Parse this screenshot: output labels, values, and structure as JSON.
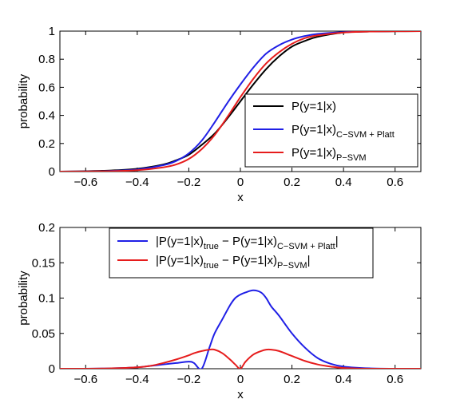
{
  "chart_data": [
    {
      "type": "line",
      "xlabel": "x",
      "ylabel": "probability",
      "xlim": [
        -0.7,
        0.7
      ],
      "ylim": [
        0,
        1
      ],
      "xticks": [
        -0.6,
        -0.4,
        -0.2,
        0,
        0.2,
        0.4,
        0.6
      ],
      "xtick_labels": [
        "−0.6",
        "−0.4",
        "−0.2",
        "0",
        "0.2",
        "0.4",
        "0.6"
      ],
      "yticks": [
        0,
        0.2,
        0.4,
        0.6,
        0.8,
        1
      ],
      "ytick_labels": [
        "0",
        "0.2",
        "0.4",
        "0.6",
        "0.8",
        "1"
      ],
      "grid": false,
      "legend_position": "bottom-right",
      "x": [
        -0.7,
        -0.6,
        -0.5,
        -0.4,
        -0.3,
        -0.25,
        -0.2,
        -0.15,
        -0.1,
        -0.05,
        0,
        0.05,
        0.1,
        0.15,
        0.2,
        0.25,
        0.3,
        0.4,
        0.5,
        0.6,
        0.7
      ],
      "series": [
        {
          "name": "P(y=1|x)",
          "legend": {
            "main": "P(y=1|x)",
            "sub": "",
            "tail": ""
          },
          "color": "#000000",
          "values": [
            0.0,
            0.003,
            0.008,
            0.02,
            0.05,
            0.08,
            0.12,
            0.19,
            0.27,
            0.38,
            0.5,
            0.62,
            0.73,
            0.82,
            0.89,
            0.93,
            0.96,
            0.99,
            0.997,
            0.999,
            1.0
          ]
        },
        {
          "name": "P(y=1|x)C−SVM + Platt",
          "legend": {
            "main": "P(y=1|x)",
            "sub": "C−SVM + Platt",
            "tail": ""
          },
          "color": "#1f1fe6",
          "values": [
            0.0,
            0.001,
            0.005,
            0.015,
            0.045,
            0.075,
            0.13,
            0.22,
            0.35,
            0.49,
            0.62,
            0.74,
            0.84,
            0.9,
            0.94,
            0.965,
            0.98,
            0.993,
            0.998,
            1.0,
            1.0
          ]
        },
        {
          "name": "P(y=1|x)P−SVM",
          "legend": {
            "main": "P(y=1|x)",
            "sub": "P−SVM",
            "tail": ""
          },
          "color": "#e61c1c",
          "values": [
            0.0,
            0.001,
            0.003,
            0.01,
            0.03,
            0.05,
            0.09,
            0.16,
            0.26,
            0.39,
            0.53,
            0.66,
            0.77,
            0.85,
            0.91,
            0.95,
            0.97,
            0.99,
            0.997,
            0.999,
            1.0
          ]
        }
      ]
    },
    {
      "type": "line",
      "xlabel": "x",
      "ylabel": "probability",
      "xlim": [
        -0.7,
        0.7
      ],
      "ylim": [
        0,
        0.2
      ],
      "xticks": [
        -0.6,
        -0.4,
        -0.2,
        0,
        0.2,
        0.4,
        0.6
      ],
      "xtick_labels": [
        "−0.6",
        "−0.4",
        "−0.2",
        "0",
        "0.2",
        "0.4",
        "0.6"
      ],
      "yticks": [
        0,
        0.05,
        0.1,
        0.15,
        0.2
      ],
      "ytick_labels": [
        "0",
        "0.05",
        "0.1",
        "0.15",
        "0.2"
      ],
      "grid": false,
      "legend_position": "top-center",
      "x": [
        -0.7,
        -0.6,
        -0.5,
        -0.4,
        -0.35,
        -0.3,
        -0.25,
        -0.2,
        -0.18,
        -0.15,
        -0.12,
        -0.1,
        -0.07,
        -0.04,
        -0.02,
        0,
        0.02,
        0.05,
        0.08,
        0.1,
        0.12,
        0.15,
        0.2,
        0.25,
        0.3,
        0.35,
        0.4,
        0.5,
        0.6,
        0.7
      ],
      "series": [
        {
          "name": "|P(y=1|x)true − P(y=1|x)C−SVM + Platt|",
          "legend": {
            "main": "|P(y=1|x)",
            "sub": "true",
            "mid": " − P(y=1|x)",
            "sub2": "C−SVM + Platt",
            "tail": "|"
          },
          "color": "#1f1fe6",
          "values": [
            0.0,
            0.0,
            0.0005,
            0.002,
            0.004,
            0.006,
            0.008,
            0.01,
            0.008,
            0.0,
            0.03,
            0.05,
            0.07,
            0.09,
            0.1,
            0.105,
            0.108,
            0.111,
            0.108,
            0.1,
            0.088,
            0.075,
            0.05,
            0.03,
            0.015,
            0.007,
            0.003,
            0.0005,
            0.0,
            0.0
          ]
        },
        {
          "name": "|P(y=1|x)true − P(y=1|x)P−SVM|",
          "legend": {
            "main": "|P(y=1|x)",
            "sub": "true",
            "mid": " −  P(y=1|x)",
            "sub2": "P−SVM",
            "tail": "|"
          },
          "color": "#e61c1c",
          "values": [
            0.0,
            0.0,
            0.0005,
            0.002,
            0.004,
            0.008,
            0.013,
            0.019,
            0.022,
            0.025,
            0.027,
            0.027,
            0.022,
            0.013,
            0.006,
            0.0,
            0.01,
            0.02,
            0.025,
            0.027,
            0.027,
            0.025,
            0.018,
            0.011,
            0.006,
            0.003,
            0.001,
            0.0,
            0.0,
            0.0
          ]
        }
      ]
    }
  ]
}
